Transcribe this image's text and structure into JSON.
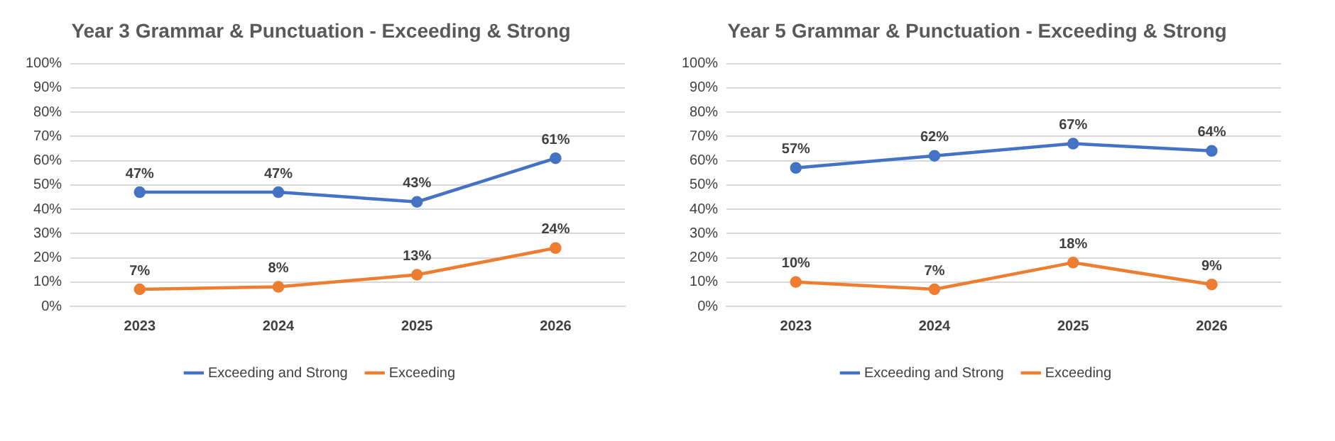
{
  "chart_data": [
    {
      "type": "line",
      "title": "Year 3 Grammar & Punctuation - Exceeding & Strong",
      "categories": [
        "2023",
        "2024",
        "2025",
        "2026"
      ],
      "series": [
        {
          "name": "Exceeding and Strong",
          "color": "#4472c4",
          "values": [
            47,
            47,
            43,
            61
          ],
          "value_labels": [
            "47%",
            "47%",
            "43%",
            "61%"
          ]
        },
        {
          "name": "Exceeding",
          "color": "#ed7d31",
          "values": [
            7,
            8,
            13,
            24
          ],
          "value_labels": [
            "7%",
            "8%",
            "13%",
            "24%"
          ]
        }
      ],
      "ylim": [
        0,
        100
      ],
      "yticks": [
        {
          "value": 0,
          "label": "0%"
        },
        {
          "value": 10,
          "label": "10%"
        },
        {
          "value": 20,
          "label": "20%"
        },
        {
          "value": 30,
          "label": "30%"
        },
        {
          "value": 40,
          "label": "40%"
        },
        {
          "value": 50,
          "label": "50%"
        },
        {
          "value": 60,
          "label": "60%"
        },
        {
          "value": 70,
          "label": "70%"
        },
        {
          "value": 80,
          "label": "80%"
        },
        {
          "value": 90,
          "label": "90%"
        },
        {
          "value": 100,
          "label": "100%"
        }
      ],
      "grid": "y",
      "legend": "bottom",
      "marker": "circle",
      "line_style": "solid"
    },
    {
      "type": "line",
      "title": "Year 5 Grammar & Punctuation - Exceeding & Strong",
      "categories": [
        "2023",
        "2024",
        "2025",
        "2026"
      ],
      "series": [
        {
          "name": "Exceeding and Strong",
          "color": "#4472c4",
          "values": [
            57,
            62,
            67,
            64
          ],
          "value_labels": [
            "57%",
            "62%",
            "67%",
            "64%"
          ]
        },
        {
          "name": "Exceeding",
          "color": "#ed7d31",
          "values": [
            10,
            7,
            18,
            9
          ],
          "value_labels": [
            "10%",
            "7%",
            "18%",
            "9%"
          ]
        }
      ],
      "ylim": [
        0,
        100
      ],
      "yticks": [
        {
          "value": 0,
          "label": "0%"
        },
        {
          "value": 10,
          "label": "10%"
        },
        {
          "value": 20,
          "label": "20%"
        },
        {
          "value": 30,
          "label": "30%"
        },
        {
          "value": 40,
          "label": "40%"
        },
        {
          "value": 50,
          "label": "50%"
        },
        {
          "value": 60,
          "label": "60%"
        },
        {
          "value": 70,
          "label": "70%"
        },
        {
          "value": 80,
          "label": "80%"
        },
        {
          "value": 90,
          "label": "90%"
        },
        {
          "value": 100,
          "label": "100%"
        }
      ],
      "grid": "y",
      "legend": "bottom",
      "marker": "circle",
      "line_style": "solid"
    }
  ]
}
